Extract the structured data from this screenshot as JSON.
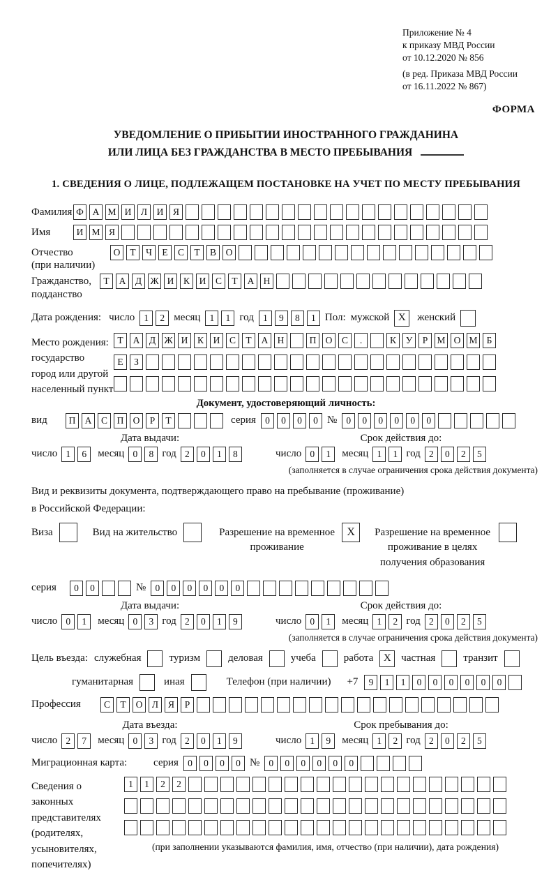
{
  "meta": {
    "appendix_lines": [
      "Приложение № 4",
      "к приказу МВД России",
      "от 10.12.2020 № 856"
    ],
    "revision_lines": [
      "(в ред. Приказа МВД России",
      "от 16.11.2022 № 867)"
    ],
    "form_label": "ФОРМА"
  },
  "title": {
    "line1": "УВЕДОМЛЕНИЕ О ПРИБЫТИИ ИНОСТРАННОГО ГРАЖДАНИНА",
    "line2": "ИЛИ ЛИЦА БЕЗ ГРАЖДАНСТВА В МЕСТО ПРЕБЫВАНИЯ"
  },
  "section1_heading": "1. СВЕДЕНИЯ О ЛИЦЕ, ПОДЛЕЖАЩЕМ ПОСТАНОВКЕ НА УЧЕТ ПО МЕСТУ ПРЕБЫВАНИЯ",
  "person": {
    "surname": {
      "label": "Фамилия",
      "value": "ФАМИЛИЯ",
      "boxes": 26
    },
    "given_name": {
      "label": "Имя",
      "value": "ИМЯ",
      "boxes": 26
    },
    "patronymic": {
      "label_line1": "Отчество",
      "label_line2": "(при наличии)",
      "value": "ОТЧЕСТВО",
      "boxes": 24
    },
    "citizenship": {
      "label_line1": "Гражданство,",
      "label_line2": "подданство",
      "value": "ТАДЖИКИСТАН",
      "boxes": 24
    },
    "birth_date": {
      "label": "Дата рождения:",
      "day_label": "число",
      "day": "12",
      "month_label": "месяц",
      "month": "11",
      "year_label": "год",
      "year": "1981"
    },
    "sex": {
      "label": "Пол:",
      "male_label": "мужской",
      "male_checked": true,
      "female_label": "женский",
      "female_checked": false
    },
    "birth_place": {
      "label_lines": [
        "Место рождения:",
        "государство",
        "город или другой",
        "населенный пункт"
      ],
      "row1": {
        "value": "ТАДЖИКИСТАН ПОС. КУРМОМБ",
        "boxes": 24
      },
      "row2": {
        "value": "ЕЗ",
        "boxes": 24
      },
      "row3": {
        "value": "",
        "boxes": 24
      }
    }
  },
  "identity_doc": {
    "heading": "Документ, удостоверяющий личность:",
    "kind_label": "вид",
    "kind": {
      "value": "ПАСПОРТ",
      "boxes": 10
    },
    "series_label": "серия",
    "series": {
      "value": "0000",
      "boxes": 4
    },
    "number_label": "№",
    "number": {
      "value": "000000",
      "boxes": 11
    },
    "issue": {
      "heading": "Дата выдачи:",
      "day_label": "число",
      "day": "16",
      "month_label": "месяц",
      "month": "08",
      "year_label": "год",
      "year": "2018"
    },
    "valid": {
      "heading": "Срок действия до:",
      "day_label": "число",
      "day": "01",
      "month_label": "месяц",
      "month": "11",
      "year_label": "год",
      "year": "2025"
    },
    "note": "(заполняется в случае ограничения срока действия документа)"
  },
  "residence_doc": {
    "intro_line1": "Вид и реквизиты документа, подтверждающего право на пребывание (проживание)",
    "intro_line2": "в Российской Федерации:",
    "options": [
      {
        "label": "Виза",
        "checked": false
      },
      {
        "label": "Вид на жительство",
        "checked": false
      },
      {
        "label": "Разрешение на временное проживание",
        "checked": true
      },
      {
        "label": "Разрешение на временное проживание в целях получения образования",
        "checked": false
      }
    ],
    "series_label": "серия",
    "series": {
      "value": "00",
      "boxes": 4
    },
    "number_label": "№",
    "number": {
      "value": "000000",
      "boxes": 15
    },
    "issue": {
      "heading": "Дата выдачи:",
      "day_label": "число",
      "day": "01",
      "month_label": "месяц",
      "month": "03",
      "year_label": "год",
      "year": "2019"
    },
    "valid": {
      "heading": "Срок действия до:",
      "day_label": "число",
      "day": "01",
      "month_label": "месяц",
      "month": "12",
      "year_label": "год",
      "year": "2025"
    },
    "note": "(заполняется в случае ограничения срока действия документа)"
  },
  "visit": {
    "purpose_label": "Цель въезда:",
    "purposes_row1": [
      {
        "label": "служебная",
        "checked": false
      },
      {
        "label": "туризм",
        "checked": false
      },
      {
        "label": "деловая",
        "checked": false
      },
      {
        "label": "учеба",
        "checked": false
      },
      {
        "label": "работа",
        "checked": true
      },
      {
        "label": "частная",
        "checked": false
      },
      {
        "label": "транзит",
        "checked": false
      }
    ],
    "purposes_row2": [
      {
        "label": "гуманитарная",
        "checked": false
      },
      {
        "label": "иная",
        "checked": false
      }
    ],
    "phone_label": "Телефон (при наличии)",
    "phone_prefix": "+7",
    "phone": {
      "value": "911000000",
      "boxes": 10
    },
    "profession_label": "Профессия",
    "profession": {
      "value": "СТОЛЯР",
      "boxes": 25
    },
    "entry_date": {
      "heading": "Дата въезда:",
      "day_label": "число",
      "day": "27",
      "month_label": "месяц",
      "month": "03",
      "year_label": "год",
      "year": "2019"
    },
    "stay_until": {
      "heading": "Срок пребывания до:",
      "day_label": "число",
      "day": "19",
      "month_label": "месяц",
      "month": "12",
      "year_label": "год",
      "year": "2025"
    },
    "migration_card_label": "Миграционная карта:",
    "mc_series_label": "серия",
    "mc_series": {
      "value": "0000",
      "boxes": 4
    },
    "mc_number_label": "№",
    "mc_number": {
      "value": "000000",
      "boxes": 10
    }
  },
  "representatives": {
    "label_lines": [
      "Сведения о",
      "законных",
      "представителях",
      "(родителях,",
      "усыновителях,",
      "попечителях)"
    ],
    "row1": {
      "value": "1122",
      "boxes": 24
    },
    "row2": {
      "value": "",
      "boxes": 24
    },
    "row3": {
      "value": "",
      "boxes": 24
    },
    "note": "(при заполнении указываются фамилия, имя, отчество (при наличии), дата рождения)"
  }
}
